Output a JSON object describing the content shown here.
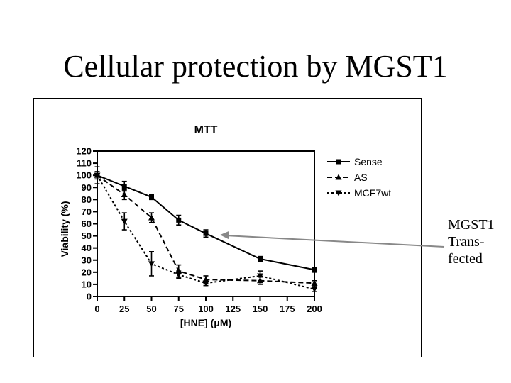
{
  "slide": {
    "title": "Cellular protection by MGST1",
    "annotation_lines": [
      "MGST1",
      "Trans-",
      "fected"
    ]
  },
  "chart_data": {
    "type": "line",
    "title": "MTT",
    "xlabel": "[HNE] (μM)",
    "ylabel": "Viability (%)",
    "x_ticks": [
      0,
      25,
      50,
      75,
      100,
      125,
      150,
      175,
      200
    ],
    "y_ticks": [
      0,
      10,
      20,
      30,
      40,
      50,
      60,
      70,
      80,
      90,
      100,
      110,
      120
    ],
    "xlim": [
      0,
      200
    ],
    "ylim": [
      0,
      120
    ],
    "legend_position": "top-right",
    "grid": false,
    "series": [
      {
        "name": "Sense",
        "marker": "square",
        "line_style": "solid",
        "x": [
          0,
          25,
          50,
          75,
          100,
          150,
          200
        ],
        "values": [
          100,
          91,
          82,
          63,
          52,
          31,
          22
        ],
        "errors": [
          3,
          4,
          2,
          4,
          3,
          2,
          2
        ]
      },
      {
        "name": "AS",
        "marker": "triangle-up",
        "line_style": "dashed",
        "x": [
          0,
          25,
          50,
          75,
          100,
          150,
          200
        ],
        "values": [
          100,
          84,
          65,
          21,
          14,
          13,
          11
        ],
        "errors": [
          3,
          4,
          4,
          5,
          3,
          3,
          2
        ]
      },
      {
        "name": "MCF7wt",
        "marker": "triangle-down",
        "line_style": "dotted",
        "x": [
          0,
          25,
          50,
          75,
          100,
          150,
          200
        ],
        "values": [
          100,
          62,
          27,
          18,
          11,
          17,
          6
        ],
        "errors": [
          7,
          7,
          10,
          3,
          2,
          4,
          2
        ]
      }
    ],
    "annotation_arrow_target": {
      "x": 100,
      "y": 52
    }
  }
}
